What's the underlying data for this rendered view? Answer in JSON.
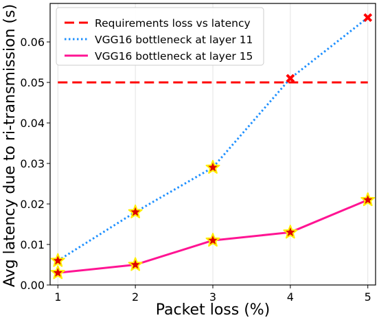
{
  "chart_data": {
    "type": "line",
    "title": "",
    "xlabel": "Packet loss (%)",
    "ylabel": "Avg latency due to ri-transmission (s)",
    "x": [
      1,
      2,
      3,
      4,
      5
    ],
    "xlim": [
      0.9,
      5.1
    ],
    "ylim": [
      0,
      0.0695
    ],
    "xticks": [
      "1",
      "2",
      "3",
      "4",
      "5"
    ],
    "yticks": [
      "0.00",
      "0.01",
      "0.02",
      "0.03",
      "0.04",
      "0.05",
      "0.06"
    ],
    "ytick_values": [
      0,
      0.01,
      0.02,
      0.03,
      0.04,
      0.05,
      0.06
    ],
    "grid": "vertical",
    "legend_position": "top-left",
    "series": [
      {
        "name": "Requirements loss vs latency",
        "style": "dashed",
        "color": "#ff0000",
        "values": [
          0.05,
          0.05,
          0.05,
          0.05,
          0.05
        ],
        "markers": "none"
      },
      {
        "name": "VGG16 bottleneck at layer 11",
        "style": "dotted",
        "color": "#1e90ff",
        "values": [
          0.006,
          0.018,
          0.029,
          0.051,
          0.066
        ],
        "markers": [
          "star",
          "star",
          "star",
          "cross",
          "cross"
        ]
      },
      {
        "name": "VGG16 bottleneck at layer 15",
        "style": "solid",
        "color": "#ff1493",
        "values": [
          0.003,
          0.005,
          0.011,
          0.013,
          0.021
        ],
        "markers": [
          "star",
          "star",
          "star",
          "star",
          "star"
        ]
      }
    ],
    "marker_colors": {
      "star_fill": "#dd0000",
      "star_edge": "#ffee00",
      "cross": "#ff0000"
    }
  }
}
